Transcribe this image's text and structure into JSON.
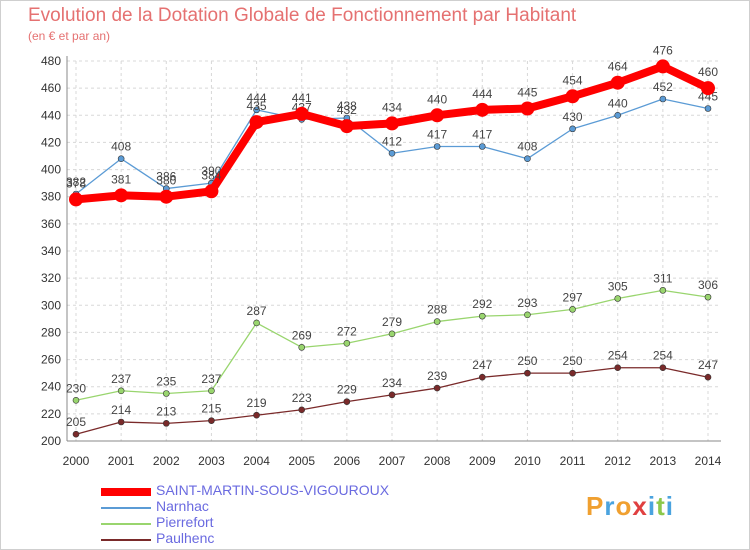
{
  "title": "Evolution de la Dotation Globale de Fonctionnement par Habitant",
  "subtitle": "(en € et par an)",
  "logo": {
    "text": "Proxiti",
    "letters": [
      {
        "ch": "P",
        "color": "#f0a030"
      },
      {
        "ch": "r",
        "color": "#4aa3df"
      },
      {
        "ch": "o",
        "color": "#f0a030"
      },
      {
        "ch": "x",
        "color": "#e04040"
      },
      {
        "ch": "i",
        "color": "#4aa3df"
      },
      {
        "ch": "t",
        "color": "#8cc84b"
      },
      {
        "ch": "i",
        "color": "#4aa3df"
      }
    ]
  },
  "chart_data": {
    "type": "line",
    "title": "Evolution de la Dotation Globale de Fonctionnement par Habitant",
    "subtitle": "(en € et par an)",
    "x": [
      "2000",
      "2001",
      "2002",
      "2003",
      "2004",
      "2005",
      "2006",
      "2007",
      "2008",
      "2009",
      "2010",
      "2011",
      "2012",
      "2013",
      "2014"
    ],
    "ylim": [
      200,
      480
    ],
    "yticks": [
      200,
      220,
      240,
      260,
      280,
      300,
      320,
      340,
      360,
      380,
      400,
      420,
      440,
      460,
      480
    ],
    "grid": true,
    "legend_position": "bottom-left",
    "series": [
      {
        "name": "SAINT-MARTIN-SOUS-VIGOUROUX",
        "color": "#ff0000",
        "emphasis": true,
        "values": [
          378,
          381,
          380,
          384,
          435,
          441,
          432,
          434,
          440,
          444,
          445,
          454,
          464,
          476,
          460
        ]
      },
      {
        "name": "Narnhac",
        "color": "#5b9bd5",
        "emphasis": false,
        "values": [
          382,
          408,
          386,
          390,
          444,
          437,
          438,
          412,
          417,
          417,
          408,
          430,
          440,
          452,
          445
        ]
      },
      {
        "name": "Pierrefort",
        "color": "#99d56e",
        "emphasis": false,
        "values": [
          230,
          237,
          235,
          237,
          287,
          269,
          272,
          279,
          288,
          292,
          293,
          297,
          305,
          311,
          306
        ]
      },
      {
        "name": "Paulhenc",
        "color": "#7a2a2a",
        "emphasis": false,
        "values": [
          205,
          214,
          213,
          215,
          219,
          223,
          229,
          234,
          239,
          247,
          250,
          250,
          254,
          254,
          247
        ]
      }
    ]
  }
}
